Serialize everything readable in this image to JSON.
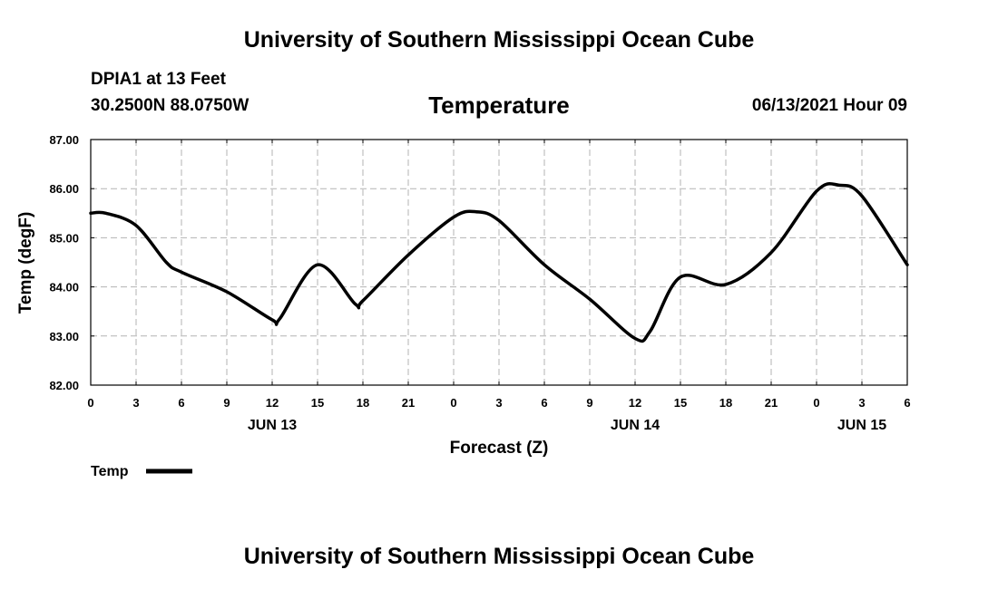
{
  "header": {
    "top_title": "University of Southern Mississippi Ocean Cube",
    "station": "DPIA1 at 13 Feet",
    "coords": "30.2500N  88.0750W",
    "variable": "Temperature",
    "datetime": "06/13/2021 Hour 09",
    "bottom_title": "University of Southern Mississippi Ocean Cube"
  },
  "legend": {
    "label": "Temp"
  },
  "chart_data": {
    "type": "line",
    "title": "Temperature",
    "xlabel": "Forecast (Z)",
    "ylabel": "Temp (degF)",
    "xlim": [
      0,
      54
    ],
    "ylim": [
      82,
      87
    ],
    "y_ticks": [
      "82.00",
      "83.00",
      "84.00",
      "85.00",
      "86.00",
      "87.00"
    ],
    "x_tick_labels": [
      "0",
      "3",
      "6",
      "9",
      "12",
      "15",
      "18",
      "21",
      "0",
      "3",
      "6",
      "9",
      "12",
      "15",
      "18",
      "21",
      "0",
      "3",
      "6"
    ],
    "day_labels": [
      {
        "label": "JUN 13",
        "hour": 12
      },
      {
        "label": "JUN 14",
        "hour": 36
      },
      {
        "label": "JUN 15",
        "hour": 51
      }
    ],
    "grid": true,
    "series": [
      {
        "name": "Temp",
        "x": [
          0,
          1,
          3,
          5,
          6,
          9,
          12,
          12.5,
          15,
          17.5,
          18,
          21,
          24,
          25.5,
          27,
          30,
          33,
          36,
          37,
          39,
          42,
          45,
          48,
          49.5,
          51,
          54
        ],
        "values": [
          85.5,
          85.5,
          85.25,
          84.5,
          84.3,
          83.9,
          83.33,
          83.35,
          84.45,
          83.65,
          83.72,
          84.65,
          85.42,
          85.53,
          85.35,
          84.45,
          83.75,
          82.95,
          83.1,
          84.2,
          84.05,
          84.7,
          85.95,
          86.07,
          85.85,
          84.45
        ]
      }
    ]
  }
}
